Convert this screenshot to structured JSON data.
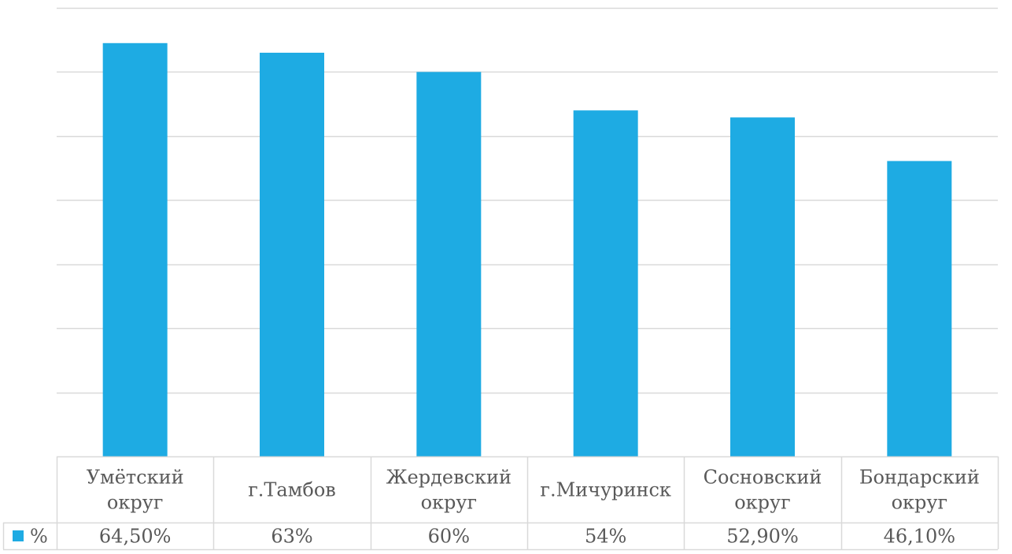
{
  "chart_data": {
    "type": "bar",
    "categories": [
      [
        "Умётский",
        "округ"
      ],
      [
        "г.Тамбов"
      ],
      [
        "Жердевский",
        "округ"
      ],
      [
        "г.Мичуринск"
      ],
      [
        "Сосновский",
        "округ"
      ],
      [
        "Бондарский",
        "округ"
      ]
    ],
    "series": [
      {
        "name": "%",
        "values": [
          64.5,
          63,
          60,
          54,
          52.9,
          46.1
        ],
        "labels": [
          "64,50%",
          "63%",
          "60%",
          "54%",
          "52,90%",
          "46,10%"
        ],
        "color": "#1EABE3"
      }
    ],
    "ylim": [
      0,
      70
    ],
    "ytick_step": 10,
    "grid": true,
    "axis_labels_visible": false,
    "data_table": true,
    "legend_key_in_table": true,
    "colors": {
      "bar": "#1EABE3",
      "grid": "#D9D9D9",
      "table_border": "#D9D9D9",
      "text": "#595959"
    }
  }
}
